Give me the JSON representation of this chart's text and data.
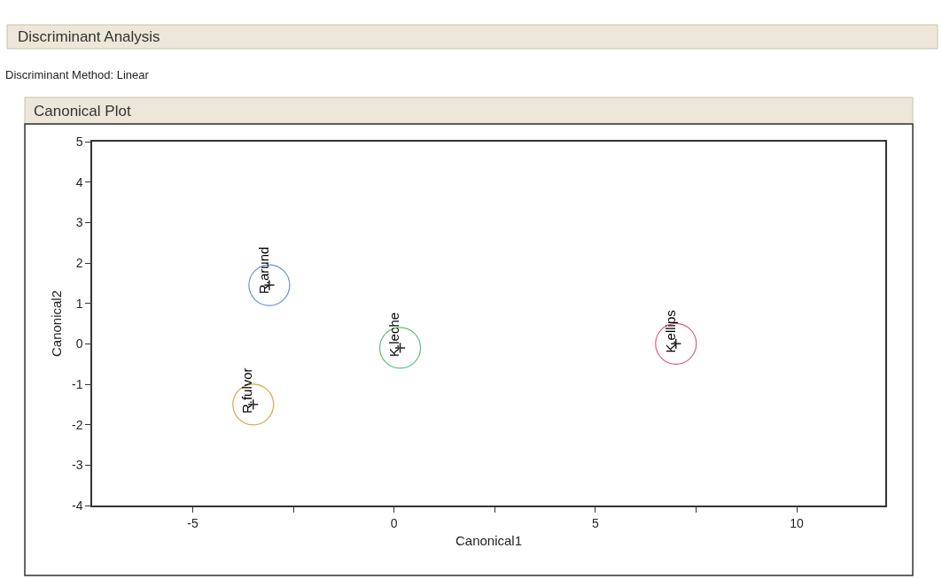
{
  "chart_data": {
    "type": "scatter",
    "title": "Discriminant Analysis",
    "subtitle": "Discriminant Method: Linear",
    "annotations": [
      "Canonical Plot"
    ],
    "xlabel": "Canonical1",
    "ylabel": "Canonical2",
    "xlim": [
      -7.5,
      12.2
    ],
    "ylim": [
      -4,
      5
    ],
    "xticks": [
      -5,
      {
        "value": -2.5,
        "label": null
      },
      0,
      {
        "value": 2.5,
        "label": null
      },
      5,
      {
        "value": 7.5,
        "label": null
      },
      10
    ],
    "yticks": [
      -4,
      -3,
      -2,
      -1,
      0,
      1,
      2,
      3,
      4,
      5
    ],
    "legend": false,
    "marker": "circle",
    "series": [
      {
        "name": "R.arund",
        "color": "#6f8fd6",
        "x": [
          -3.1
        ],
        "values": [
          1.45
        ]
      },
      {
        "name": "R.fulvor",
        "color": "#d9a64a",
        "x": [
          -3.5
        ],
        "values": [
          -1.5
        ]
      },
      {
        "name": "K.leche",
        "color": "#5cc07a",
        "x": [
          0.15
        ],
        "values": [
          -0.1
        ]
      },
      {
        "name": "K.ellips",
        "color": "#d9607e",
        "x": [
          7.0
        ],
        "values": [
          0.0
        ]
      }
    ]
  }
}
